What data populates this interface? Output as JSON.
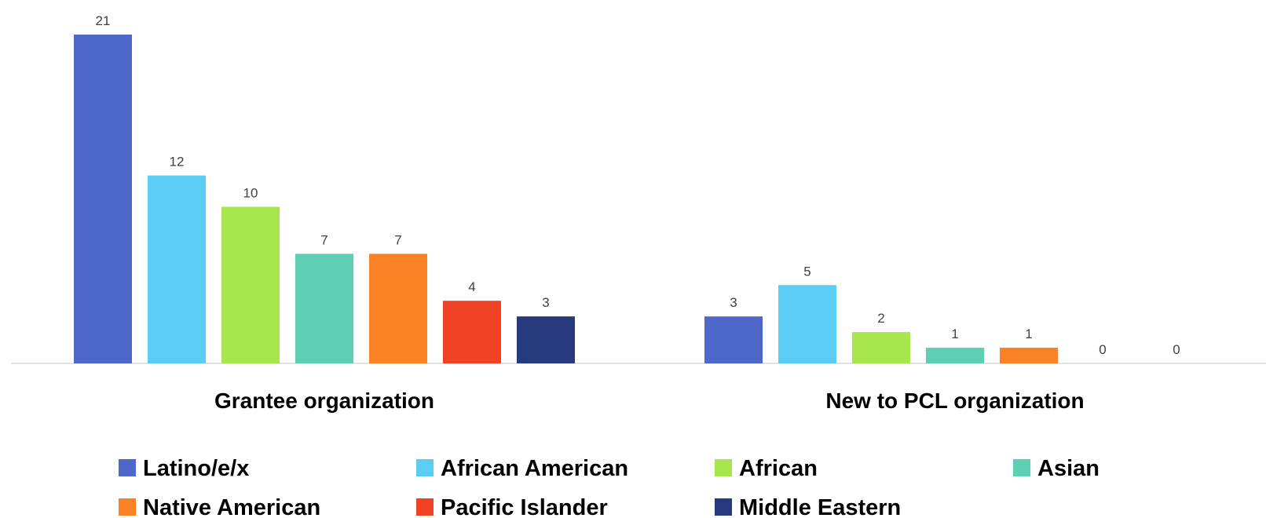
{
  "chart_data": {
    "type": "bar",
    "categories": [
      "Grantee organization",
      "New to PCL organization"
    ],
    "series": [
      {
        "name": "Latino/e/x",
        "color": "#4F67C9",
        "values": [
          21,
          3
        ]
      },
      {
        "name": "African American",
        "color": "#5CCDF2",
        "values": [
          12,
          5
        ]
      },
      {
        "name": "African",
        "color": "#A8E64F",
        "values": [
          10,
          2
        ]
      },
      {
        "name": "Asian",
        "color": "#5ECFB2",
        "values": [
          7,
          1
        ]
      },
      {
        "name": "Native American",
        "color": "#FB8224",
        "values": [
          7,
          1
        ]
      },
      {
        "name": "Pacific Islander",
        "color": "#EF4224",
        "values": [
          4,
          0
        ]
      },
      {
        "name": "Middle Eastern",
        "color": "#263A7D",
        "values": [
          3,
          0
        ]
      }
    ],
    "title": "",
    "xlabel": "",
    "ylabel": "",
    "ylim": [
      0,
      21
    ],
    "grid": false,
    "data_labels": true,
    "legend_position": "bottom"
  }
}
